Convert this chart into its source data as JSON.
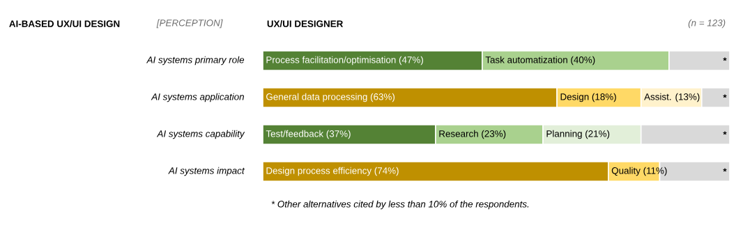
{
  "chart_data": {
    "type": "bar",
    "orientation": "horizontal",
    "stacked": true,
    "title": "AI-BASED UX/UI DESIGN",
    "subtitle": "[PERCEPTION]",
    "categories": [
      "AI systems primary role",
      "AI systems application",
      "AI systems capability",
      "AI systems impact"
    ],
    "series": [
      {
        "values": [
          47,
          63,
          37,
          74
        ],
        "colors": [
          "#548235",
          "#bf9000",
          "#548235",
          "#bf9000"
        ],
        "value_labels": [
          "Process facilitation/optimisation (47%)",
          "General data processing (63%)",
          "Test/feedback (37%)",
          "Design process efficiency (74%)"
        ]
      },
      {
        "values": [
          40,
          18,
          23,
          11
        ],
        "colors": [
          "#a9d18e",
          "#ffd966",
          "#a9d18e",
          "#ffd966"
        ],
        "value_labels": [
          "Task automatization (40%)",
          "Design (18%)",
          "Research (23%)",
          "Quality (11%)"
        ]
      },
      {
        "values": [
          null,
          13,
          21,
          null
        ],
        "colors": [
          null,
          "#fff2cc",
          "#e2efd9",
          null
        ],
        "value_labels": [
          null,
          "Assist. (13%)",
          "Planning (21%)",
          null
        ]
      },
      {
        "values": [
          13,
          6,
          19,
          15
        ],
        "colors": [
          "#d9d9d9",
          "#d9d9d9",
          "#d9d9d9",
          "#d9d9d9"
        ],
        "value_labels": [
          "*",
          "*",
          "*",
          "*"
        ]
      }
    ],
    "annotations": [
      "UX/UI DESIGNER",
      "(n = 123)",
      "* Other alternatives cited by less than 10% of the respondents."
    ]
  }
}
